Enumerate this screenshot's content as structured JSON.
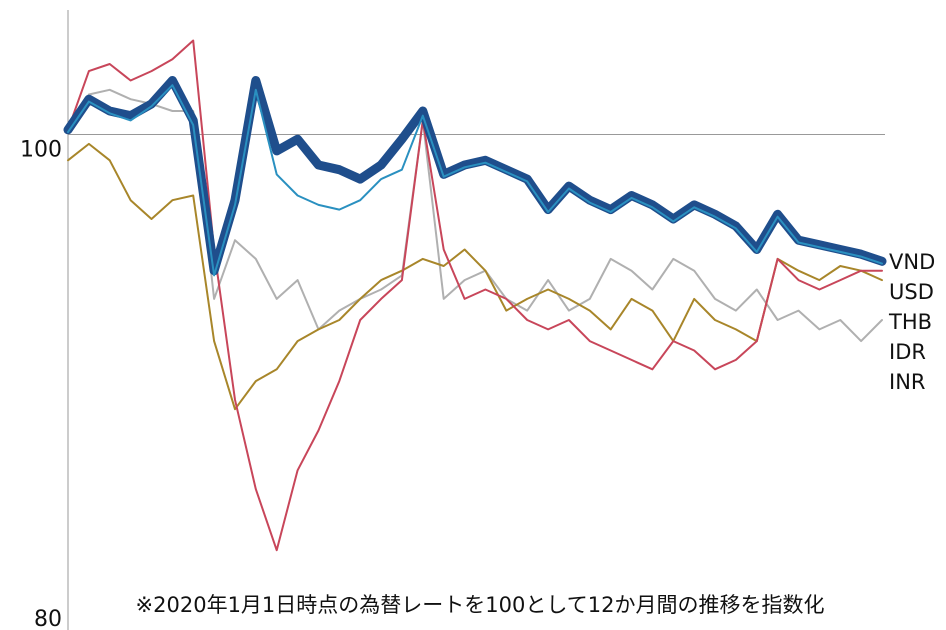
{
  "chart_data": {
    "type": "line",
    "note": "※2020年1月1日時点の為替レートを100として12か月間の推移を指数化",
    "ylim": [
      78.9,
      105.3
    ],
    "yticks": [
      80,
      100
    ],
    "hline": 100,
    "series": [
      {
        "name": "VND",
        "color": "#1f4e8c",
        "values": [
          100.2,
          101.5,
          101.0,
          100.8,
          101.3,
          102.3,
          100.6,
          94.2,
          97.2,
          102.3,
          99.3,
          99.8,
          98.7,
          98.5,
          98.1,
          98.7,
          99.8,
          101.0,
          98.3,
          98.7,
          98.9,
          98.5,
          98.1,
          96.8,
          97.8,
          97.2,
          96.8,
          97.4,
          97.0,
          96.4,
          97.0,
          96.6,
          96.1,
          95.1,
          96.6,
          95.5,
          95.3,
          95.1,
          94.9,
          94.6
        ]
      },
      {
        "name": "USD",
        "color": "#2a90c0",
        "values": [
          100.1,
          101.4,
          100.9,
          100.6,
          101.2,
          102.1,
          100.4,
          94.0,
          97.0,
          101.9,
          98.3,
          97.4,
          97.0,
          96.8,
          97.2,
          98.1,
          98.5,
          100.8,
          98.2,
          98.6,
          98.8,
          98.4,
          98.0,
          96.7,
          97.7,
          97.1,
          96.7,
          97.3,
          96.9,
          96.3,
          96.9,
          96.5,
          96.0,
          95.0,
          96.5,
          95.4,
          95.2,
          95.0,
          94.8,
          94.5
        ]
      },
      {
        "name": "THB",
        "color": "#b0b0b0",
        "values": [
          100.2,
          101.7,
          101.9,
          101.5,
          101.3,
          101.0,
          101.0,
          93.0,
          95.5,
          94.7,
          93.0,
          93.8,
          91.7,
          92.5,
          93.0,
          93.4,
          94.0,
          100.6,
          93.0,
          93.8,
          94.2,
          93.0,
          92.5,
          93.8,
          92.5,
          93.0,
          94.7,
          94.2,
          93.4,
          94.7,
          94.2,
          93.0,
          92.5,
          93.4,
          92.1,
          92.5,
          91.7,
          92.1,
          91.2,
          92.1
        ]
      },
      {
        "name": "IDR",
        "color": "#a8862a",
        "values": [
          98.9,
          99.6,
          98.9,
          97.2,
          96.4,
          97.2,
          97.4,
          91.2,
          88.3,
          89.5,
          90.0,
          91.2,
          91.7,
          92.1,
          93.0,
          93.8,
          94.2,
          94.7,
          94.4,
          95.1,
          94.2,
          92.5,
          93.0,
          93.4,
          93.0,
          92.5,
          91.7,
          93.0,
          92.5,
          91.2,
          93.0,
          92.1,
          91.7,
          91.2,
          94.7,
          94.2,
          93.8,
          94.4,
          94.2,
          93.8
        ]
      },
      {
        "name": "INR",
        "color": "#c8465a",
        "values": [
          100.2,
          102.7,
          103.0,
          102.3,
          102.7,
          103.2,
          104.0,
          95.1,
          88.7,
          84.9,
          82.3,
          85.7,
          87.4,
          89.5,
          92.1,
          93.0,
          93.8,
          100.6,
          95.1,
          93.0,
          93.4,
          93.0,
          92.1,
          91.7,
          92.1,
          91.2,
          90.8,
          90.4,
          90.0,
          91.2,
          90.8,
          90.0,
          90.4,
          91.2,
          94.7,
          93.8,
          93.4,
          93.8,
          94.2,
          94.2
        ]
      }
    ]
  }
}
